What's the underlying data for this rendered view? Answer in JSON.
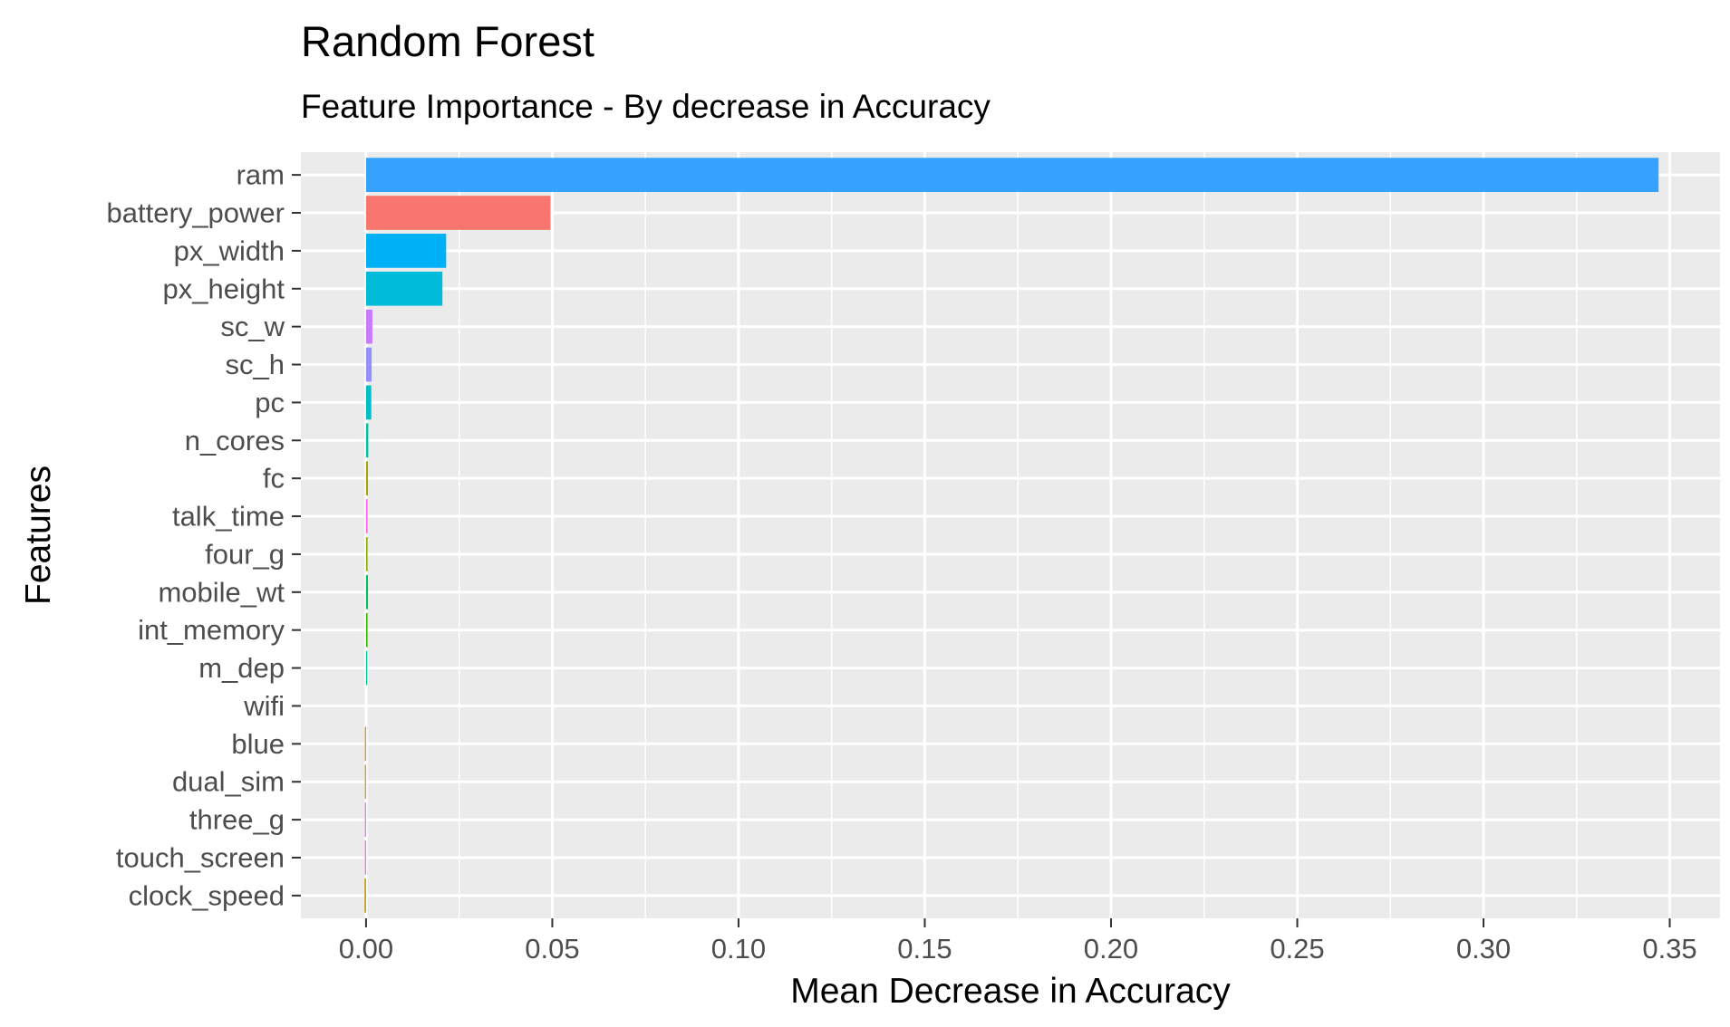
{
  "chart_data": {
    "type": "bar",
    "orientation": "horizontal",
    "title": "Random Forest",
    "subtitle": "Feature Importance - By decrease in Accuracy",
    "xlabel": "Mean Decrease in Accuracy",
    "ylabel": "Features",
    "xlim": [
      -0.0175,
      0.3635
    ],
    "xticks": [
      0.0,
      0.05,
      0.1,
      0.15,
      0.2,
      0.25,
      0.3,
      0.35
    ],
    "xtick_labels": [
      "0.00",
      "0.05",
      "0.10",
      "0.15",
      "0.20",
      "0.25",
      "0.30",
      "0.35"
    ],
    "grid": true,
    "legend": "none",
    "panel_color": "#ebebeb",
    "categories": [
      "ram",
      "battery_power",
      "px_width",
      "px_height",
      "sc_w",
      "sc_h",
      "pc",
      "n_cores",
      "fc",
      "talk_time",
      "four_g",
      "mobile_wt",
      "int_memory",
      "m_dep",
      "wifi",
      "blue",
      "dual_sim",
      "three_g",
      "touch_screen",
      "clock_speed"
    ],
    "values": [
      0.347,
      0.0495,
      0.0215,
      0.0205,
      0.0017,
      0.0015,
      0.0014,
      0.0006,
      0.0005,
      0.0004,
      0.0004,
      0.0005,
      0.0004,
      0.0003,
      0.0,
      -0.0003,
      -0.0003,
      -0.0003,
      -0.0003,
      -0.0004
    ],
    "colors": [
      "#35a2ff",
      "#f8766d",
      "#00b0f6",
      "#00bcd8",
      "#c77cff",
      "#9590ff",
      "#00bfc4",
      "#00c19a",
      "#a3a500",
      "#f564e3",
      "#85ad00",
      "#00bd5c",
      "#39b600",
      "#00c08b",
      "#bbbbbb",
      "#e58700",
      "#d89000",
      "#e76bf3",
      "#fd61d1",
      "#c99800"
    ]
  }
}
